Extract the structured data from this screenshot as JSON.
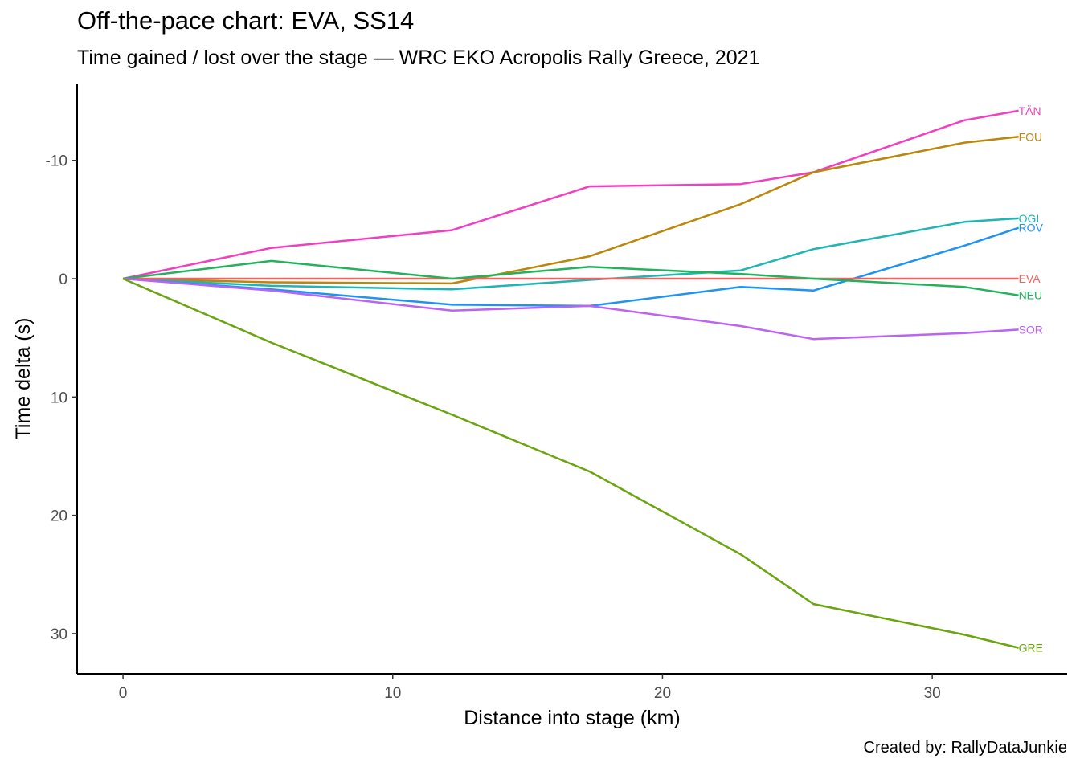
{
  "title": "Off-the-pace chart: EVA, SS14",
  "subtitle": "Time gained / lost over the stage — WRC EKO Acropolis Rally Greece, 2021",
  "caption": "Created by: RallyDataJunkie",
  "chart_data": {
    "type": "line",
    "title": "Off-the-pace chart: EVA, SS14",
    "subtitle": "Time gained / lost over the stage — WRC EKO Acropolis Rally Greece, 2021",
    "xlabel": "Distance into stage (km)",
    "ylabel": "Time delta (s)",
    "xlim": [
      -1.7,
      35
    ],
    "ylim": [
      -16.5,
      33.4
    ],
    "y_reversed": true,
    "x_ticks": [
      0,
      10,
      20,
      30
    ],
    "x_tick_labels": [
      "0",
      "10",
      "20",
      "30"
    ],
    "y_ticks": [
      -10,
      0,
      10,
      20,
      30
    ],
    "y_tick_labels": [
      "-10",
      "0",
      "10",
      "20",
      "30"
    ],
    "grid": false,
    "legend": "direct labels at line ends",
    "x": [
      0,
      5.5,
      12.2,
      17.3,
      22.9,
      25.6,
      31.2,
      33.2
    ],
    "series": [
      {
        "name": "TÄN",
        "color": "#f23fbf",
        "values": [
          0,
          -2.6,
          -4.1,
          -7.8,
          -8.0,
          -9.0,
          -13.4,
          -14.2
        ]
      },
      {
        "name": "FOU",
        "color": "#bb860a",
        "values": [
          0,
          0.3,
          0.4,
          -1.9,
          -6.3,
          -9.0,
          -11.5,
          -12.0
        ]
      },
      {
        "name": "OGI",
        "color": "#20b5b5",
        "values": [
          0,
          0.6,
          0.9,
          0.1,
          -0.7,
          -2.5,
          -4.8,
          -5.1
        ]
      },
      {
        "name": "ROV",
        "color": "#1e93f5",
        "values": [
          0,
          0.9,
          2.2,
          2.3,
          0.7,
          1.0,
          -2.8,
          -4.3
        ]
      },
      {
        "name": "EVA",
        "color": "#ee6461",
        "values": [
          0,
          0,
          0,
          0,
          0,
          0,
          0,
          0
        ]
      },
      {
        "name": "NEU",
        "color": "#22b25c",
        "values": [
          0,
          -1.5,
          0,
          -1.0,
          -0.4,
          0,
          0.7,
          1.4
        ]
      },
      {
        "name": "SOR",
        "color": "#bb63f5",
        "values": [
          0,
          1.0,
          2.7,
          2.3,
          4.0,
          5.1,
          4.6,
          4.3
        ]
      },
      {
        "name": "GRE",
        "color": "#6aa40f",
        "values": [
          0,
          5.4,
          11.5,
          16.3,
          23.3,
          27.5,
          30.1,
          31.2
        ]
      }
    ]
  }
}
